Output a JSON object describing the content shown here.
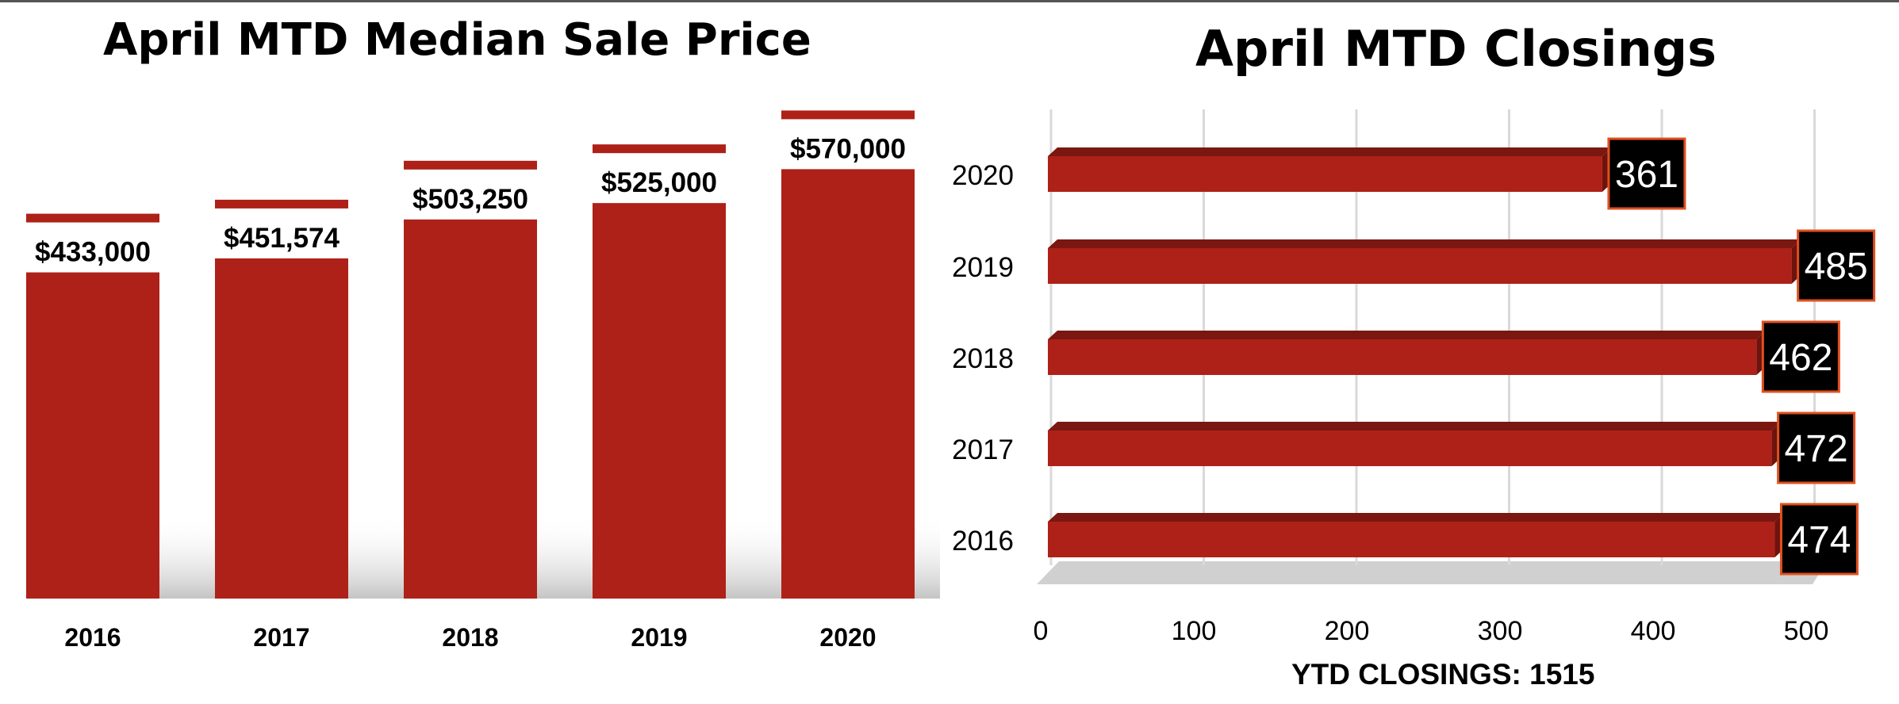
{
  "chart_data": [
    {
      "type": "bar",
      "title": "April MTD Median Sale Price",
      "categories": [
        "2016",
        "2017",
        "2018",
        "2019",
        "2020"
      ],
      "values": [
        433000,
        451574,
        503250,
        525000,
        570000
      ],
      "data_labels": [
        "$433,000",
        "$451,574",
        "$503,250",
        "$525,000",
        "$570,000"
      ],
      "bar_color": "#AE2118",
      "grid": false,
      "legend": "none"
    },
    {
      "type": "bar",
      "orientation": "horizontal",
      "title": "April MTD Closings",
      "categories": [
        "2020",
        "2019",
        "2018",
        "2017",
        "2016"
      ],
      "values": [
        361,
        485,
        462,
        472,
        474
      ],
      "xlim": [
        0,
        500
      ],
      "x_ticks": [
        "0",
        "100",
        "200",
        "300",
        "400",
        "500"
      ],
      "bar_color": "#AE2118",
      "label_box_color": "#000000",
      "label_border_color": "#E0501E",
      "grid": true,
      "legend": "none",
      "footer": "YTD CLOSINGS: 1515"
    }
  ]
}
